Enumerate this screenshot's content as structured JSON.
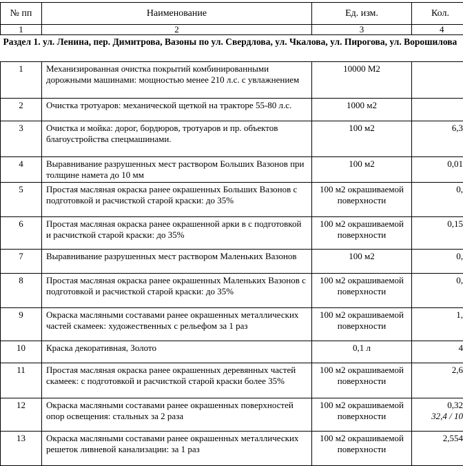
{
  "header": {
    "col1": "№ пп",
    "col2": "Наименование",
    "col3": "Ед. изм.",
    "col4": "Кол."
  },
  "numbers": [
    "1",
    "2",
    "3",
    "4"
  ],
  "section": "Раздел 1. ул. Ленина, пер. Димитрова, Вазоны по ул. Свердлова, ул. Чкалова, ул. Пирогова, ул. Ворошилова",
  "rows": [
    {
      "n": "1",
      "name": "Механизированная очистка покрытий комбинированными дорожными машинами: мощностью менее 210 л.с. с увлажнением",
      "unit": "10000 М2",
      "qty": "",
      "qty2": ""
    },
    {
      "n": "2",
      "name": "Очистка тротуаров: механической щеткой на тракторе 55-80 л.с.",
      "unit": "1000 м2",
      "qty": "",
      "qty2": ""
    },
    {
      "n": "3",
      "name": "Очистка и мойка: дорог, бордюров, тротуаров и пр. объектов благоустройства спецмашинами.",
      "unit": "100 м2",
      "qty": "6,3",
      "qty2": ""
    },
    {
      "n": "4",
      "name": "Выравнивание разрушенных мест раствором Больших Вазонов при толщине намета до 10 мм",
      "unit": "100 м2",
      "qty": "0,01",
      "qty2": ""
    },
    {
      "n": "5",
      "name": "Простая масляная окраска ранее окрашенных Больших Вазонов с подготовкой и расчисткой старой краски: до 35%",
      "unit": "100 м2 окрашиваемой поверхности",
      "qty": "0,",
      "qty2": ""
    },
    {
      "n": "6",
      "name": "Простая масляная окраска ранее окрашенной арки в с подготовкой и расчисткой старой краски: до 35%",
      "unit": "100 м2 окрашиваемой поверхности",
      "qty": "0,15",
      "qty2": ""
    },
    {
      "n": "7",
      "name": "Выравнивание разрушенных мест раствором Маленьких Вазонов",
      "unit": "100 м2",
      "qty": "0,",
      "qty2": ""
    },
    {
      "n": "8",
      "name": "Простая масляная окраска ранее окрашенных Маленьких Вазонов с подготовкой и расчисткой старой краски: до 35%",
      "unit": "100 м2 окрашиваемой поверхности",
      "qty": "0,",
      "qty2": ""
    },
    {
      "n": "9",
      "name": "Окраска масляными составами ранее окрашенных металлических частей скамеек: художественных с рельефом за 1 раз",
      "unit": "100 м2 окрашиваемой поверхности",
      "qty": "1,",
      "qty2": ""
    },
    {
      "n": "10",
      "name": "Краска декоративная, Золото",
      "unit": "0,1 л",
      "qty": "4",
      "qty2": ""
    },
    {
      "n": "11",
      "name": "Простая масляная окраска ранее окрашенных деревянных частей скамеек: с подготовкой и расчисткой старой краски более 35%",
      "unit": "100 м2 окрашиваемой поверхности",
      "qty": "2,6",
      "qty2": ""
    },
    {
      "n": "12",
      "name": "Окраска масляными составами ранее окрашенных поверхностей опор освещения: стальных за 2 раза",
      "unit": "100 м2 окрашиваемой поверхности",
      "qty": "0,32",
      "qty2": "32,4 / 10"
    },
    {
      "n": "13",
      "name": "Окраска масляными составами ранее окрашенных металлических решеток ливневой канализации: за 1 раз",
      "unit": "100 м2 окрашиваемой поверхности",
      "qty": "2,554",
      "qty2": ""
    }
  ]
}
